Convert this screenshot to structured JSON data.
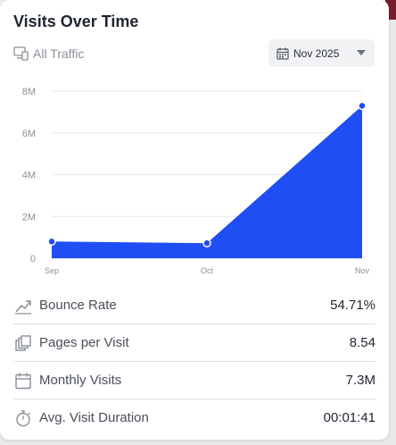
{
  "card": {
    "title": "Visits Over Time",
    "filter_label": "All Traffic",
    "filter_icon": "devices-icon",
    "date_select": {
      "value": "Nov 2025",
      "icon": "calendar-icon"
    }
  },
  "chart_data": {
    "type": "area",
    "categories": [
      "Sep",
      "Oct",
      "Nov"
    ],
    "values": [
      800000,
      720000,
      7300000
    ],
    "ylim": [
      0,
      8000000
    ],
    "yticks": [
      "0",
      "2M",
      "4M",
      "6M",
      "8M"
    ],
    "grid": true,
    "color": "#1f4ef5"
  },
  "metrics": [
    {
      "label": "Bounce Rate",
      "value": "54.71%",
      "icon": "trend-icon"
    },
    {
      "label": "Pages per Visit",
      "value": "8.54",
      "icon": "pages-icon"
    },
    {
      "label": "Monthly Visits",
      "value": "7.3M",
      "icon": "calendar-icon"
    },
    {
      "label": "Avg. Visit Duration",
      "value": "00:01:41",
      "icon": "stopwatch-icon"
    }
  ]
}
